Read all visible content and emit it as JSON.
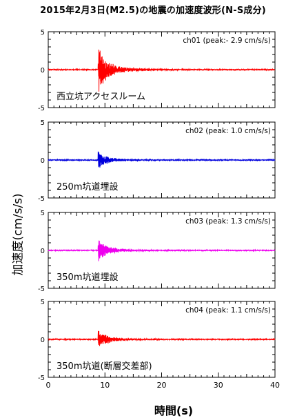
{
  "title": "2015年2月3日(M2.5)の地震の加速度波形(N-S成分)",
  "ylabel": "加速度(cm/s/s)",
  "xlabel": "時間(s)",
  "chart_data": {
    "type": "line",
    "xlim": [
      0,
      40
    ],
    "ylim": [
      -5,
      5
    ],
    "x_ticks": [
      0,
      10,
      20,
      30,
      40
    ],
    "y_ticks": [
      -5,
      0,
      5
    ],
    "event_onset_s": 8.8,
    "panels": [
      {
        "channel": "ch01",
        "peak_label": "ch01 (peak:- 2.9 cm/s/s)",
        "peak": -2.9,
        "color": "#ff0000",
        "location": "西立坑アクセスルーム"
      },
      {
        "channel": "ch02",
        "peak_label": "ch02 (peak: 1.0 cm/s/s)",
        "peak": 1.0,
        "color": "#0000dd",
        "location": "250m坑道埋設"
      },
      {
        "channel": "ch03",
        "peak_label": "ch03 (peak: 1.3 cm/s/s)",
        "peak": 1.3,
        "color": "#ee00ee",
        "location": "350m坑道埋設"
      },
      {
        "channel": "ch04",
        "peak_label": "ch04 (peak: 1.1 cm/s/s)",
        "peak": 1.1,
        "color": "#ff0000",
        "location": "350m坑道(断層交差部)"
      }
    ]
  }
}
